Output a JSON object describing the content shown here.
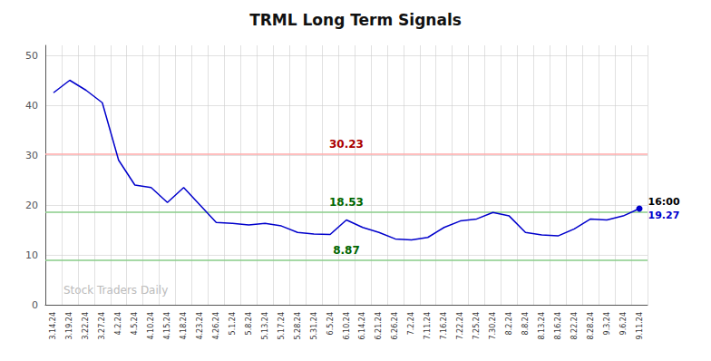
{
  "chart_data": {
    "type": "line",
    "title": "TRML Long Term Signals",
    "categories": [
      "3.14.24",
      "3.19.24",
      "3.22.24",
      "3.27.24",
      "4.2.24",
      "4.5.24",
      "4.10.24",
      "4.15.24",
      "4.18.24",
      "4.23.24",
      "4.26.24",
      "5.1.24",
      "5.8.24",
      "5.13.24",
      "5.17.24",
      "5.28.24",
      "5.31.24",
      "6.5.24",
      "6.10.24",
      "6.14.24",
      "6.21.24",
      "6.26.24",
      "7.2.24",
      "7.11.24",
      "7.16.24",
      "7.22.24",
      "7.25.24",
      "7.30.24",
      "8.2.24",
      "8.8.24",
      "8.13.24",
      "8.16.24",
      "8.22.24",
      "8.28.24",
      "9.3.24",
      "9.6.24",
      "9.11.24"
    ],
    "values": [
      42.5,
      45.0,
      43.0,
      40.5,
      29.0,
      24.0,
      23.5,
      20.5,
      23.5,
      20.0,
      16.5,
      16.3,
      16.0,
      16.3,
      15.8,
      14.5,
      14.2,
      14.1,
      17.0,
      15.5,
      14.5,
      13.2,
      13.0,
      13.5,
      15.5,
      16.8,
      17.2,
      18.5,
      17.8,
      14.5,
      14.0,
      13.8,
      15.2,
      17.2,
      17.0,
      17.8,
      19.27
    ],
    "color": "#0000cc",
    "ylim": [
      0,
      52
    ],
    "yticks": [
      0,
      10,
      20,
      30,
      40,
      50
    ],
    "grid": true,
    "reference_lines": [
      {
        "value": 30.23,
        "color": "#ffaaaa",
        "label_color": "#aa0000"
      },
      {
        "value": 18.53,
        "color": "#88cc88",
        "label_color": "#006600"
      },
      {
        "value": 8.87,
        "color": "#88cc88",
        "label_color": "#006600"
      }
    ],
    "annotations": [
      {
        "text": "16:00",
        "color": "#000000"
      },
      {
        "text": "19.27",
        "color": "#0000cc"
      }
    ],
    "watermark": {
      "text": "Stock Traders Daily",
      "color": "#bbbbbb"
    }
  }
}
